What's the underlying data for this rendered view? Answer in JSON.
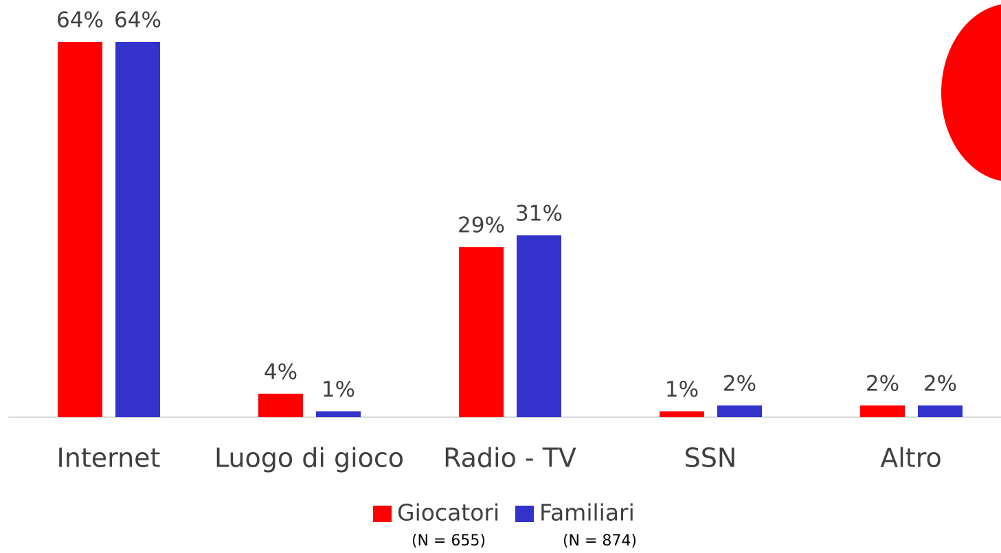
{
  "chart_data": {
    "type": "bar",
    "categories": [
      "Internet",
      "Luogo di gioco",
      "Radio - TV",
      "SSN",
      "Altro"
    ],
    "series": [
      {
        "name": "Giocatori",
        "note": "(N = 655)",
        "color": "#ff0000",
        "values": [
          64,
          4,
          29,
          1,
          2
        ],
        "value_labels": [
          "64%",
          "4%",
          "29%",
          "1%",
          "2%"
        ]
      },
      {
        "name": "Familiari",
        "note": "(N = 874)",
        "color": "#3333cc",
        "values": [
          64,
          1,
          31,
          2,
          2
        ],
        "value_labels": [
          "64%",
          "1%",
          "31%",
          "2%",
          "2%"
        ]
      }
    ],
    "legend": "bottom"
  }
}
